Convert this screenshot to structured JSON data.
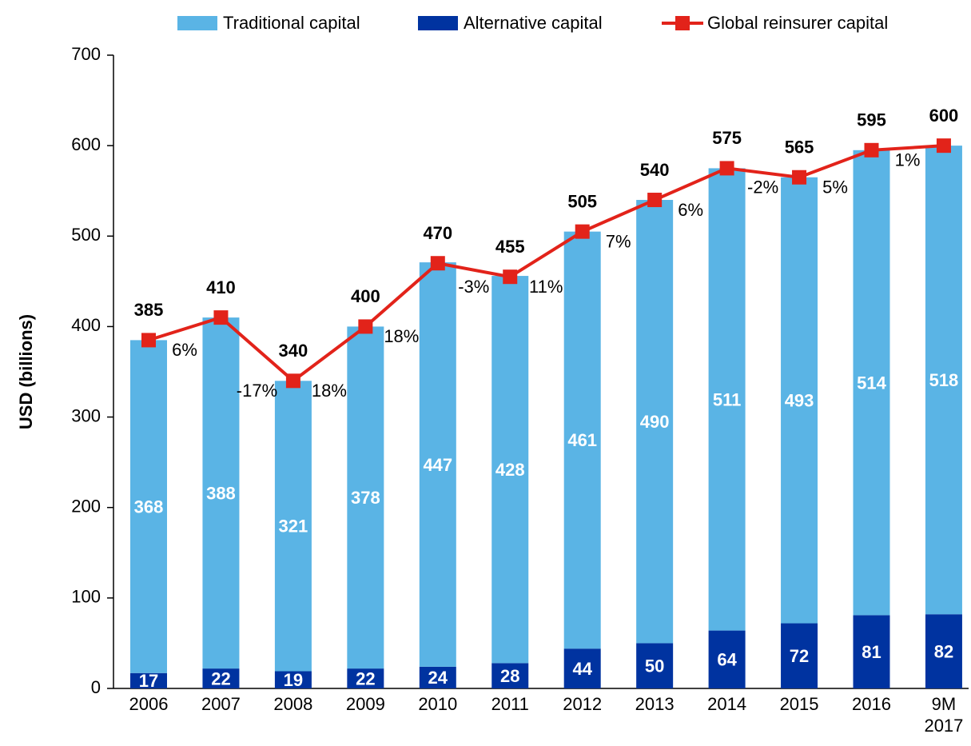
{
  "chart_data": {
    "type": "bar",
    "y_label": "USD (billions)",
    "categories": [
      "2006",
      "2007",
      "2008",
      "2009",
      "2010",
      "2011",
      "2012",
      "2013",
      "2014",
      "2015",
      "2016",
      "9M\n2017"
    ],
    "series": [
      {
        "name": "Traditional capital",
        "kind": "bar",
        "color": "#5ab4e5",
        "values": [
          368,
          388,
          321,
          378,
          447,
          428,
          461,
          490,
          511,
          493,
          514,
          518
        ]
      },
      {
        "name": "Alternative capital",
        "kind": "bar",
        "color": "#0033a0",
        "values": [
          17,
          22,
          19,
          22,
          24,
          28,
          44,
          50,
          64,
          72,
          81,
          82
        ]
      },
      {
        "name": "Global reinsurer capital",
        "kind": "line",
        "color": "#e2231a",
        "values": [
          385,
          410,
          340,
          400,
          470,
          455,
          505,
          540,
          575,
          565,
          595,
          600
        ]
      }
    ],
    "growth": {
      "values": [
        6,
        -17,
        18,
        18,
        -3,
        11,
        7,
        6,
        -2,
        5,
        1
      ],
      "value_labels": [
        "6%",
        "-17%",
        "18%",
        "18%",
        "-3%",
        "11%",
        "7%",
        "6%",
        "-2%",
        "5%",
        "1%"
      ]
    },
    "ylim": [
      0,
      700
    ],
    "yticks": [
      0,
      100,
      200,
      300,
      400,
      500,
      600,
      700
    ],
    "legend": "top"
  }
}
